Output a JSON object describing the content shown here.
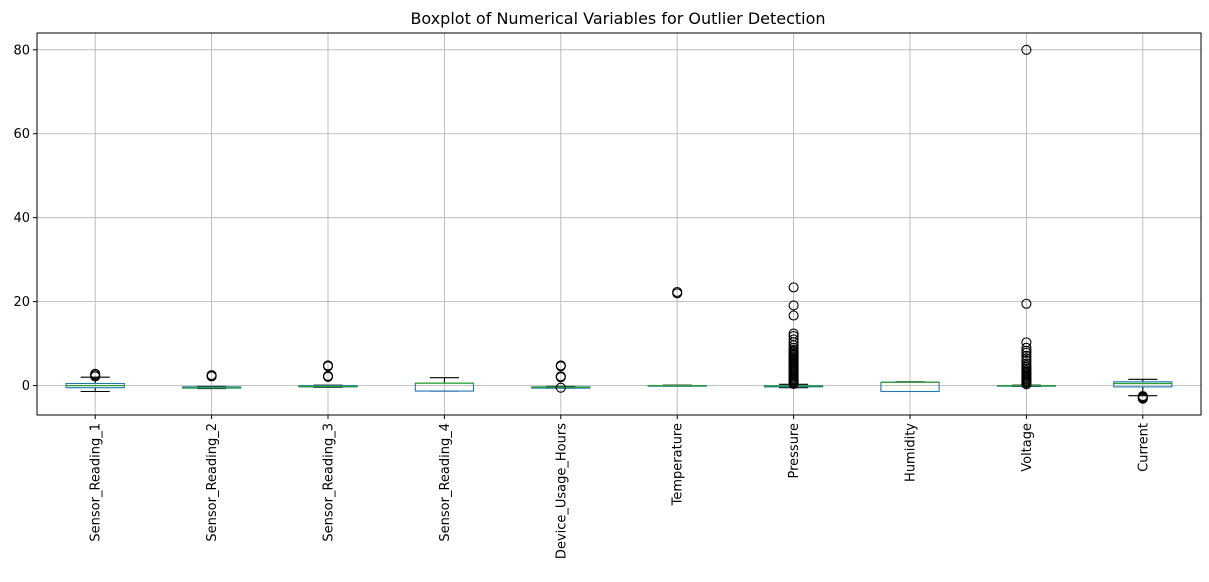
{
  "chart_data": {
    "type": "boxplot",
    "title": "Boxplot of Numerical Variables for Outlier Detection",
    "xlabel": "",
    "ylabel": "",
    "ylim": [
      -7,
      84
    ],
    "yticks": [
      0,
      20,
      40,
      60,
      80
    ],
    "grid": true,
    "categories": [
      "Sensor_Reading_1",
      "Sensor_Reading_2",
      "Sensor_Reading_3",
      "Sensor_Reading_4",
      "Device_Usage_Hours",
      "Temperature",
      "Pressure",
      "Humidity",
      "Voltage",
      "Current"
    ],
    "boxes": [
      {
        "name": "Sensor_Reading_1",
        "whislo": -1.4,
        "q1": -0.5,
        "med": 0.0,
        "q3": 0.5,
        "whishi": 2.0,
        "fliers": [
          2.2,
          2.5,
          2.8
        ]
      },
      {
        "name": "Sensor_Reading_2",
        "whislo": -0.7,
        "q1": -0.6,
        "med": -0.5,
        "q3": -0.3,
        "whishi": -0.2,
        "fliers": [
          2.2,
          2.4,
          2.5
        ]
      },
      {
        "name": "Sensor_Reading_3",
        "whislo": -0.4,
        "q1": -0.3,
        "med": -0.2,
        "q3": 0.0,
        "whishi": 0.1,
        "fliers": [
          2.1,
          2.3,
          4.6,
          4.8
        ]
      },
      {
        "name": "Sensor_Reading_4",
        "whislo": -1.3,
        "q1": -1.3,
        "med": 0.6,
        "q3": 0.6,
        "whishi": 1.9,
        "fliers": []
      },
      {
        "name": "Device_Usage_Hours",
        "whislo": -0.6,
        "q1": -0.6,
        "med": -0.4,
        "q3": -0.3,
        "whishi": -0.2,
        "fliers": [
          -0.5,
          2.0,
          2.2,
          4.6,
          4.8
        ]
      },
      {
        "name": "Temperature",
        "whislo": -0.1,
        "q1": -0.1,
        "med": 0.0,
        "q3": 0.0,
        "whishi": 0.1,
        "fliers": [
          22.0,
          22.3
        ]
      },
      {
        "name": "Pressure",
        "whislo": -0.5,
        "q1": -0.3,
        "med": -0.1,
        "q3": 0.0,
        "whishi": 0.3,
        "fliers": [
          0.4,
          0.7,
          1.0,
          1.3,
          1.6,
          1.9,
          2.2,
          2.5,
          2.8,
          3.1,
          3.4,
          3.7,
          4.0,
          4.3,
          4.6,
          4.9,
          5.2,
          5.5,
          5.8,
          6.1,
          6.4,
          6.7,
          7.0,
          7.3,
          7.6,
          7.9,
          8.2,
          8.5,
          9.0,
          9.6,
          10.3,
          11.0,
          11.8,
          12.4,
          16.7,
          19.1,
          23.4
        ]
      },
      {
        "name": "Humidity",
        "whislo": -1.4,
        "q1": -1.4,
        "med": 0.8,
        "q3": 0.8,
        "whishi": 0.9,
        "fliers": []
      },
      {
        "name": "Voltage",
        "whislo": -0.2,
        "q1": -0.1,
        "med": 0.0,
        "q3": 0.0,
        "whishi": 0.1,
        "fliers": [
          0.3,
          0.6,
          0.9,
          1.2,
          1.5,
          1.8,
          2.1,
          2.4,
          2.7,
          3.0,
          3.3,
          3.6,
          4.0,
          4.4,
          4.8,
          5.3,
          5.9,
          6.5,
          7.1,
          7.8,
          8.3,
          9.0,
          10.3,
          19.5,
          80.0
        ]
      },
      {
        "name": "Current",
        "whislo": -2.4,
        "q1": -0.3,
        "med": 0.5,
        "q3": 0.9,
        "whishi": 1.5,
        "fliers": [
          -2.5,
          -2.7,
          -2.9,
          -3.1
        ]
      }
    ]
  }
}
